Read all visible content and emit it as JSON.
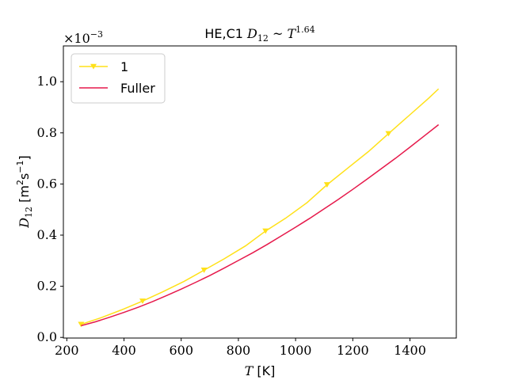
{
  "chart_data": {
    "type": "line",
    "title": "HE,C1 D12 ~ T^1.64",
    "title_parts": {
      "prefix": "HE,C1 ",
      "d": "D",
      "d_sub": "12",
      "sim": " ~ ",
      "t": "T",
      "t_sup": "1.64"
    },
    "xlabel": "T [K]",
    "xlabel_parts": {
      "var": "T",
      "unit": " [K]"
    },
    "ylabel": "D12 [m2s-1]",
    "ylabel_parts": {
      "var": "D",
      "sub": "12",
      "unit_open": " [m",
      "unit_sup1": "2",
      "unit_mid": "s",
      "unit_sup2": "−1",
      "unit_close": "]"
    },
    "y_offset_label": {
      "base": "×10",
      "exp": "−3"
    },
    "xlim": [
      188,
      1562
    ],
    "ylim": [
      -2.5e-06,
      0.00114
    ],
    "xticks": [
      200,
      400,
      600,
      800,
      1000,
      1200,
      1400
    ],
    "yticks": [
      0.0,
      0.0002,
      0.0004,
      0.0006,
      0.0008,
      0.001
    ],
    "ytick_labels": [
      "0.0",
      "0.2",
      "0.4",
      "0.6",
      "0.8",
      "1.0"
    ],
    "grid": false,
    "legend_position": "top-left",
    "series": [
      {
        "name": "1",
        "color": "#ffe119",
        "marker": "triangle-down",
        "x": [
          250,
          320,
          390,
          465,
          535,
          610,
          680,
          750,
          825,
          895,
          965,
          1040,
          1110,
          1180,
          1255,
          1325,
          1395,
          1465,
          1500
        ],
        "y": [
          5.1e-05,
          7.7e-05,
          0.000107,
          0.000142,
          0.000178,
          0.000219,
          0.000263,
          0.000307,
          0.000358,
          0.000416,
          0.000466,
          0.000527,
          0.000597,
          0.00066,
          0.000727,
          0.000797,
          0.000866,
          0.000935,
          0.000972
        ],
        "marker_x": [
          250,
          465,
          680,
          895,
          1110,
          1325
        ]
      },
      {
        "name": "Fuller",
        "color": "#e6194b",
        "marker": "none",
        "x": [
          250,
          300,
          350,
          400,
          450,
          500,
          550,
          600,
          650,
          700,
          750,
          800,
          850,
          900,
          950,
          1000,
          1050,
          1100,
          1150,
          1200,
          1250,
          1300,
          1350,
          1400,
          1450,
          1500
        ],
        "y": [
          4.6e-05,
          6.1e-05,
          7.9e-05,
          9.8e-05,
          0.000118,
          0.00014,
          0.000164,
          0.000189,
          0.000215,
          0.000242,
          0.000271,
          0.000301,
          0.000331,
          0.000363,
          0.000397,
          0.000431,
          0.000466,
          0.000503,
          0.00054,
          0.000579,
          0.000619,
          0.00066,
          0.000701,
          0.000744,
          0.000788,
          0.000832
        ]
      }
    ]
  }
}
